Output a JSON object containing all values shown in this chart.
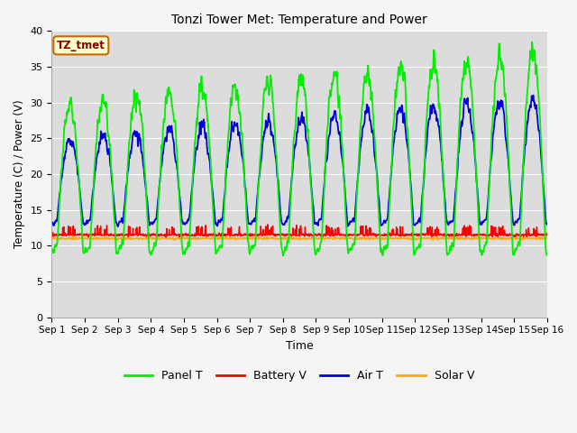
{
  "title": "Tonzi Tower Met: Temperature and Power",
  "xlabel": "Time",
  "ylabel": "Temperature (C) / Power (V)",
  "ylim": [
    0,
    40
  ],
  "yticks": [
    0,
    5,
    10,
    15,
    20,
    25,
    30,
    35,
    40
  ],
  "days": 15,
  "points_per_day": 96,
  "panel_t_color": "#00ee00",
  "battery_v_color": "#ff0000",
  "air_t_color": "#0000dd",
  "solar_v_color": "#ffaa00",
  "bg_color": "#dcdcdc",
  "fig_color": "#f5f5f5",
  "grid_color": "#ffffff",
  "legend_label": "TZ_tmet",
  "legend_bg": "#ffffcc",
  "legend_border": "#cc6600",
  "legend_text_color": "#880000",
  "series_labels": [
    "Panel T",
    "Battery V",
    "Air T",
    "Solar V"
  ]
}
